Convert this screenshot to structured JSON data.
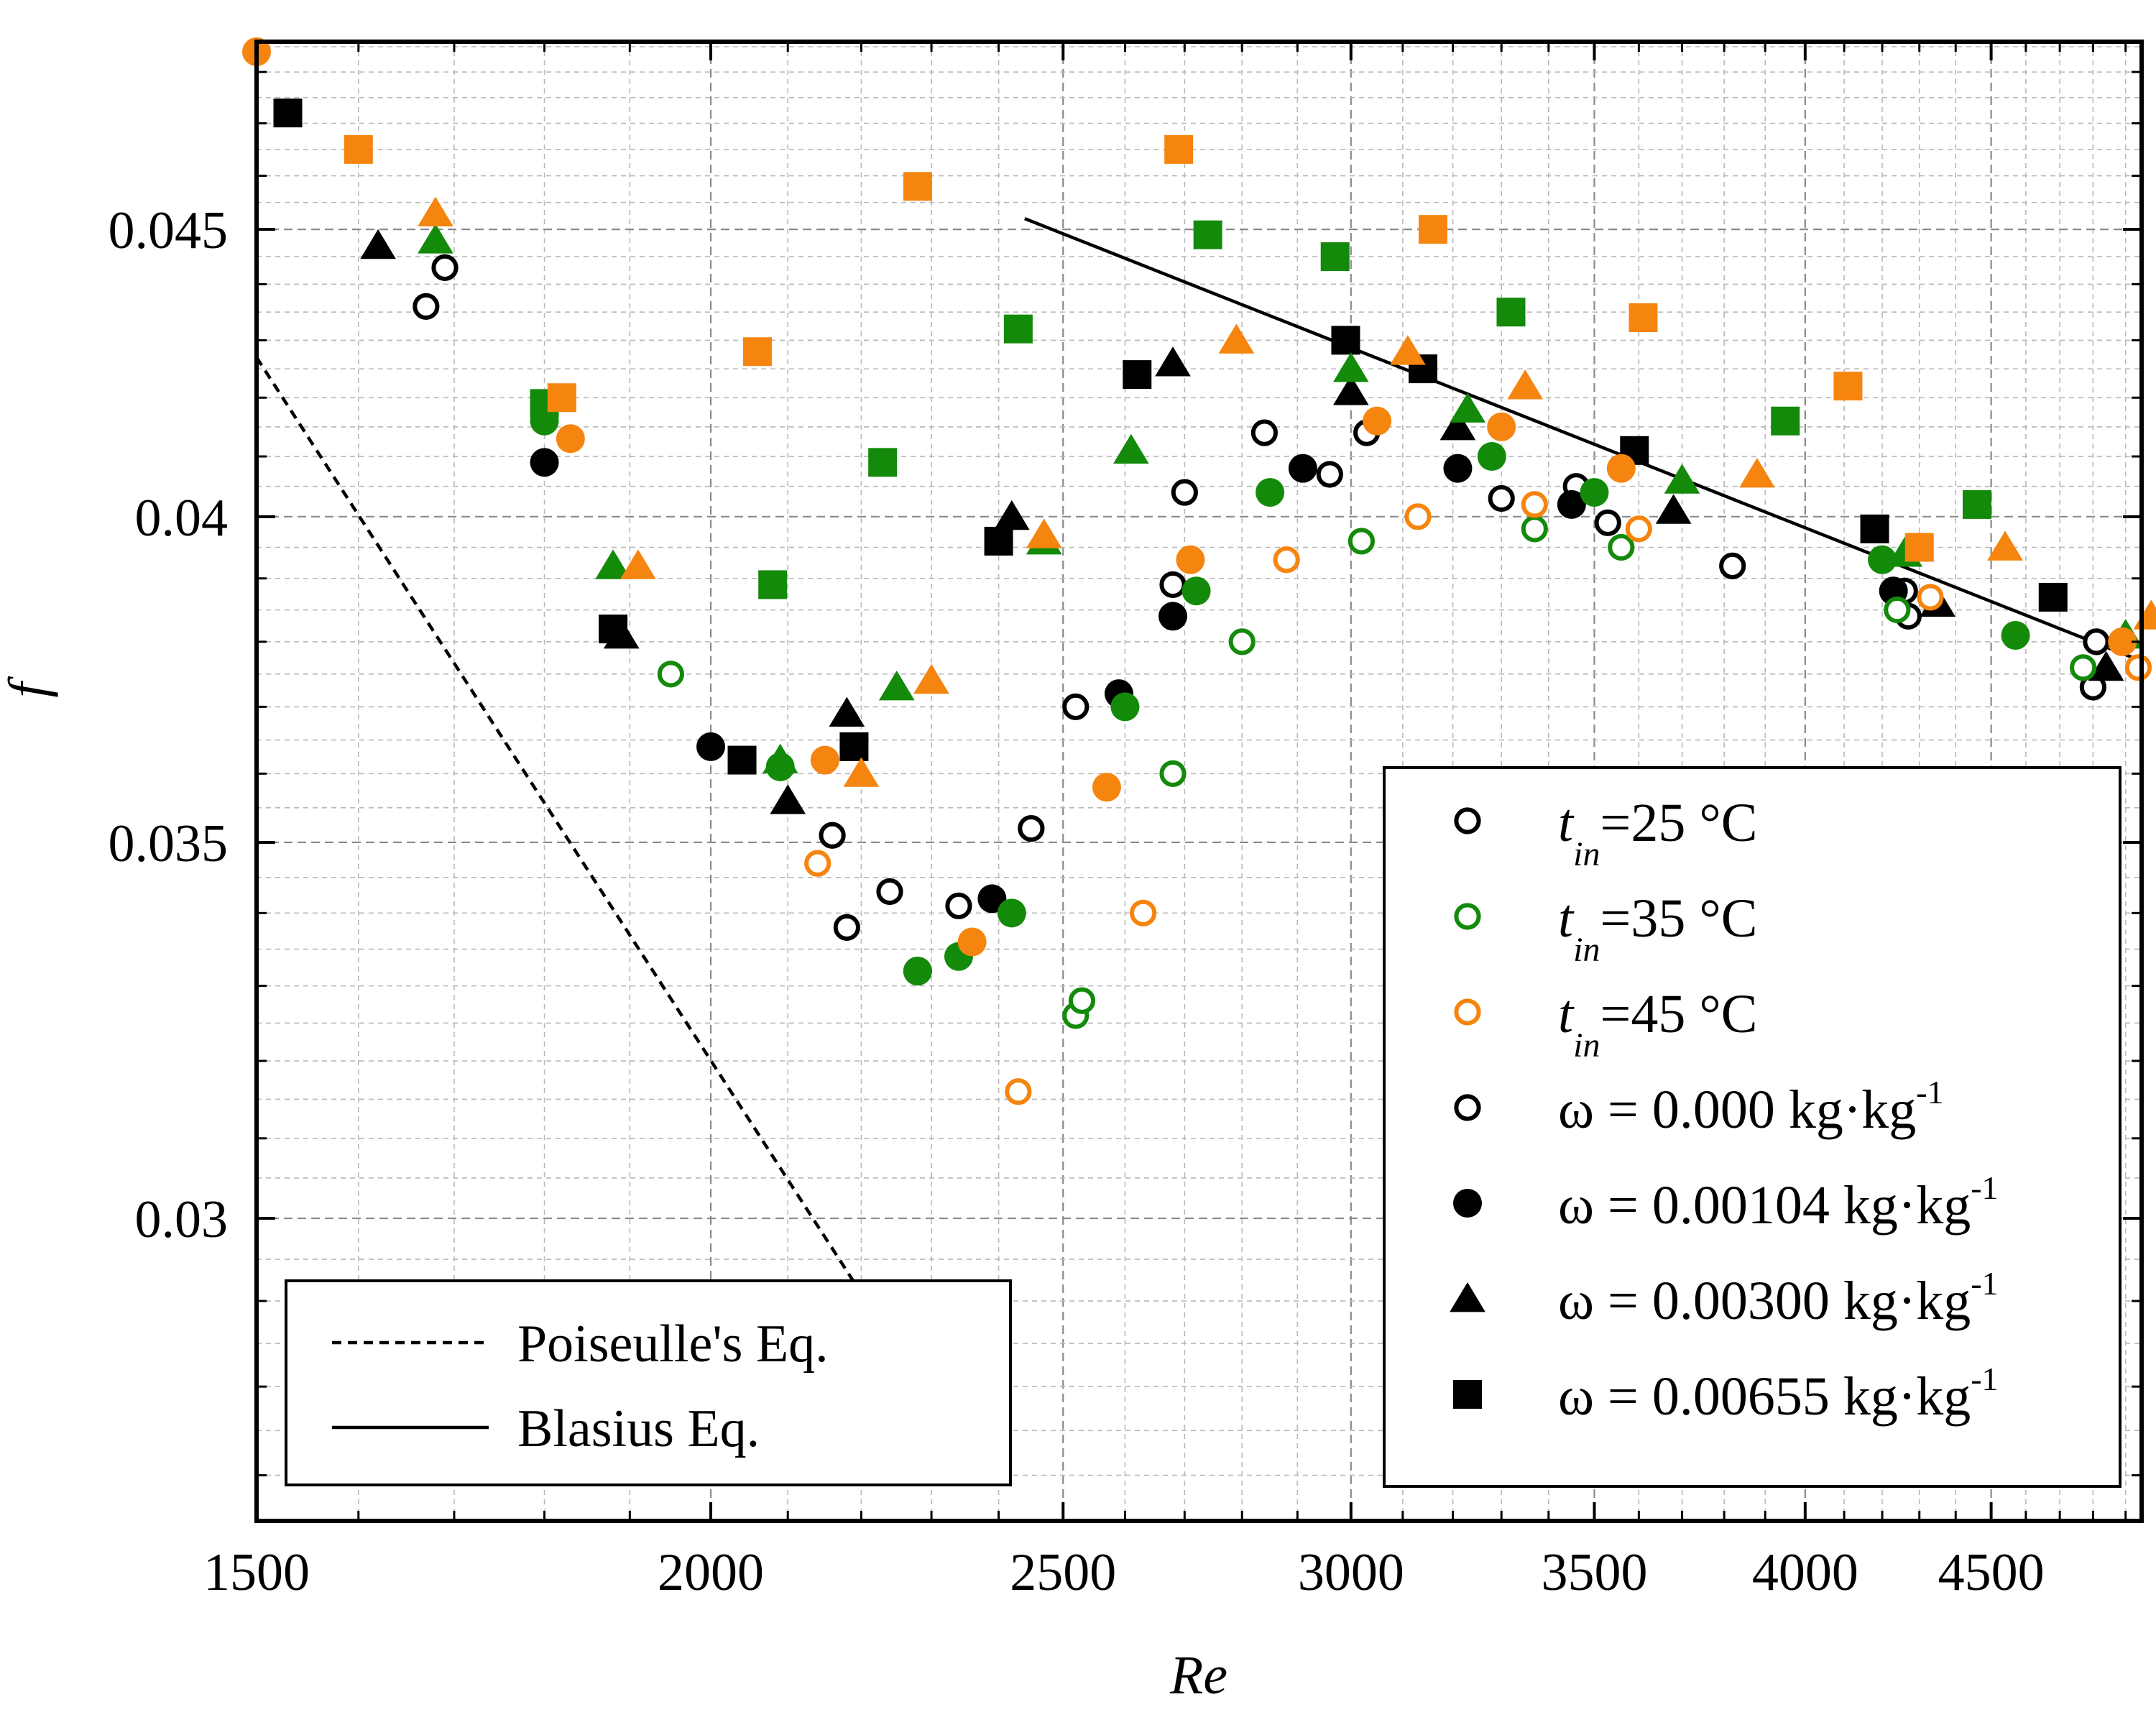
{
  "chart_data": {
    "type": "scatter",
    "title": "",
    "xlabel": "Re",
    "ylabel": "f",
    "xscale": "log",
    "yscale": "log",
    "xlim": [
      1500,
      4950
    ],
    "ylim": [
      0.0265,
      0.0486
    ],
    "grid": true,
    "x_ticks": [
      1500,
      2000,
      2500,
      3000,
      3500,
      4000,
      4500
    ],
    "x_tick_labels": [
      "1500",
      "2000",
      "2500",
      "3000",
      "3500",
      "4000",
      "4500"
    ],
    "y_ticks": [
      0.03,
      0.035,
      0.04,
      0.045
    ],
    "y_tick_labels": [
      "0.03",
      "0.035",
      "0.04",
      "0.045"
    ],
    "colors": {
      "25": "#000000",
      "35": "#138a0a",
      "45": "#f5850f"
    },
    "legend_main": [
      {
        "kind": "temp",
        "key": "25",
        "sym": "t",
        "sub": "in",
        "text": "=25 °C"
      },
      {
        "kind": "temp",
        "key": "35",
        "sym": "t",
        "sub": "in",
        "text": "=35 °C"
      },
      {
        "kind": "temp",
        "key": "45",
        "sym": "t",
        "sub": "in",
        "text": "=45 °C"
      },
      {
        "kind": "omega",
        "marker": "circle-open",
        "text": "ω = 0.000 kg·kg",
        "sup": "-1"
      },
      {
        "kind": "omega",
        "marker": "circle",
        "text": "ω = 0.00104 kg·kg",
        "sup": "-1"
      },
      {
        "kind": "omega",
        "marker": "triangle",
        "text": "ω = 0.00300 kg·kg",
        "sup": "-1"
      },
      {
        "kind": "omega",
        "marker": "square",
        "text": "ω = 0.00655 kg·kg",
        "sup": "-1"
      }
    ],
    "legend_lines": [
      {
        "style": "dashed",
        "text": "Poiseulle's Eq."
      },
      {
        "style": "solid",
        "text": "Blasius Eq."
      }
    ],
    "lines": [
      {
        "name": "Poiseulle's Eq.",
        "style": "dashed",
        "x": [
          1500,
          2370
        ],
        "y": [
          0.0427,
          0.027
        ]
      },
      {
        "name": "Blasius Eq.",
        "style": "solid",
        "x": [
          2440,
          4950
        ],
        "y": [
          0.0452,
          0.0377
        ]
      }
    ],
    "series": [
      {
        "name": "t_in=25 °C, ω=0.000",
        "temp": "25",
        "marker": "circle-open",
        "points": [
          [
            1670,
            0.0436
          ],
          [
            1690,
            0.0443
          ],
          [
            2160,
            0.0351
          ],
          [
            2180,
            0.0338
          ],
          [
            2240,
            0.0343
          ],
          [
            2340,
            0.0341
          ],
          [
            2450,
            0.0352
          ],
          [
            2520,
            0.037
          ],
          [
            2680,
            0.0389
          ],
          [
            2700,
            0.0404
          ],
          [
            2840,
            0.0414
          ],
          [
            2960,
            0.0407
          ],
          [
            3030,
            0.0414
          ],
          [
            3300,
            0.0403
          ],
          [
            3460,
            0.0405
          ],
          [
            3530,
            0.0399
          ],
          [
            3820,
            0.0392
          ],
          [
            4260,
            0.0388
          ],
          [
            4270,
            0.0384
          ],
          [
            4800,
            0.0373
          ],
          [
            4810,
            0.038
          ]
        ]
      },
      {
        "name": "t_in=25 °C, ω=0.00104",
        "temp": "25",
        "marker": "circle",
        "points": [
          [
            1800,
            0.0409
          ],
          [
            2000,
            0.0364
          ],
          [
            2280,
            0.0332
          ],
          [
            2390,
            0.0342
          ],
          [
            2590,
            0.0372
          ],
          [
            2680,
            0.0384
          ],
          [
            2910,
            0.0408
          ],
          [
            3210,
            0.0408
          ],
          [
            3450,
            0.0402
          ],
          [
            4230,
            0.0388
          ]
        ]
      },
      {
        "name": "t_in=25 °C, ω=0.00300",
        "temp": "25",
        "marker": "triangle",
        "points": [
          [
            1620,
            0.0447
          ],
          [
            1890,
            0.0381
          ],
          [
            2100,
            0.0356
          ],
          [
            2180,
            0.0369
          ],
          [
            2420,
            0.04
          ],
          [
            2680,
            0.0426
          ],
          [
            3000,
            0.0421
          ],
          [
            3210,
            0.0415
          ],
          [
            3680,
            0.0401
          ],
          [
            4350,
            0.0386
          ],
          [
            4840,
            0.0376
          ]
        ]
      },
      {
        "name": "t_in=25 °C, ω=0.00655",
        "temp": "25",
        "marker": "square",
        "points": [
          [
            1530,
            0.0472
          ],
          [
            1880,
            0.0382
          ],
          [
            2040,
            0.0362
          ],
          [
            2190,
            0.0364
          ],
          [
            2400,
            0.0396
          ],
          [
            2620,
            0.0424
          ],
          [
            2990,
            0.043
          ],
          [
            3140,
            0.0425
          ],
          [
            3590,
            0.0411
          ],
          [
            4180,
            0.0398
          ],
          [
            4680,
            0.0387
          ]
        ]
      },
      {
        "name": "t_in=35 °C, ω=0.000",
        "temp": "35",
        "marker": "circle-open",
        "points": [
          [
            1950,
            0.0375
          ],
          [
            2520,
            0.0326
          ],
          [
            2530,
            0.0328
          ],
          [
            2680,
            0.036
          ],
          [
            2800,
            0.038
          ],
          [
            3020,
            0.0396
          ],
          [
            3370,
            0.0398
          ],
          [
            3560,
            0.0395
          ],
          [
            4240,
            0.0385
          ],
          [
            4770,
            0.0376
          ]
        ]
      },
      {
        "name": "t_in=35 °C, ω=0.00104",
        "temp": "35",
        "marker": "circle",
        "points": [
          [
            1800,
            0.0416
          ],
          [
            2090,
            0.0361
          ],
          [
            2280,
            0.0332
          ],
          [
            2340,
            0.0334
          ],
          [
            2420,
            0.034
          ],
          [
            2600,
            0.037
          ],
          [
            2720,
            0.0388
          ],
          [
            2850,
            0.0404
          ],
          [
            3280,
            0.041
          ],
          [
            3500,
            0.0404
          ],
          [
            4200,
            0.0393
          ],
          [
            4570,
            0.0381
          ]
        ]
      },
      {
        "name": "t_in=35 °C, ω=0.00300",
        "temp": "35",
        "marker": "triangle",
        "points": [
          [
            1680,
            0.0448
          ],
          [
            1880,
            0.0392
          ],
          [
            2090,
            0.0362
          ],
          [
            2250,
            0.0373
          ],
          [
            2470,
            0.0396
          ],
          [
            2610,
            0.0411
          ],
          [
            3000,
            0.0425
          ],
          [
            3230,
            0.0418
          ],
          [
            3700,
            0.0406
          ],
          [
            4260,
            0.0394
          ],
          [
            4900,
            0.0381
          ]
        ]
      },
      {
        "name": "t_in=35 °C, ω=0.00655",
        "temp": "35",
        "marker": "square",
        "points": [
          [
            1800,
            0.0419
          ],
          [
            2080,
            0.0389
          ],
          [
            2230,
            0.0409
          ],
          [
            2430,
            0.0432
          ],
          [
            2740,
            0.0449
          ],
          [
            2970,
            0.0445
          ],
          [
            3320,
            0.0435
          ],
          [
            3950,
            0.0416
          ],
          [
            4460,
            0.0402
          ]
        ]
      },
      {
        "name": "t_in=45 °C, ω=0.000",
        "temp": "45",
        "marker": "circle-open",
        "points": [
          [
            2140,
            0.0347
          ],
          [
            2430,
            0.0316
          ],
          [
            2630,
            0.034
          ],
          [
            2880,
            0.0393
          ],
          [
            3130,
            0.04
          ],
          [
            3370,
            0.0402
          ],
          [
            3600,
            0.0398
          ],
          [
            4330,
            0.0387
          ],
          [
            4940,
            0.0376
          ]
        ]
      },
      {
        "name": "t_in=45 °C, ω=0.00104",
        "temp": "45",
        "marker": "circle",
        "points": [
          [
            1500,
            0.0484
          ],
          [
            1830,
            0.0413
          ],
          [
            2150,
            0.0362
          ],
          [
            2360,
            0.0336
          ],
          [
            2570,
            0.0358
          ],
          [
            2710,
            0.0393
          ],
          [
            3050,
            0.0416
          ],
          [
            3300,
            0.0415
          ],
          [
            3560,
            0.0408
          ],
          [
            4890,
            0.038
          ]
        ]
      },
      {
        "name": "t_in=45 °C, ω=0.00300",
        "temp": "45",
        "marker": "triangle",
        "points": [
          [
            1680,
            0.0453
          ],
          [
            1910,
            0.0392
          ],
          [
            2200,
            0.036
          ],
          [
            2300,
            0.0374
          ],
          [
            2470,
            0.0397
          ],
          [
            2790,
            0.043
          ],
          [
            3110,
            0.0428
          ],
          [
            3350,
            0.0422
          ],
          [
            3880,
            0.0407
          ],
          [
            4540,
            0.0395
          ],
          [
            4980,
            0.0384
          ]
        ]
      },
      {
        "name": "t_in=45 °C, ω=0.00655",
        "temp": "45",
        "marker": "square",
        "points": [
          [
            1600,
            0.0465
          ],
          [
            1820,
            0.042
          ],
          [
            2060,
            0.0428
          ],
          [
            2280,
            0.0458
          ],
          [
            2690,
            0.0465
          ],
          [
            3160,
            0.045
          ],
          [
            3610,
            0.0434
          ],
          [
            4110,
            0.0422
          ],
          [
            4300,
            0.0395
          ]
        ]
      }
    ]
  }
}
